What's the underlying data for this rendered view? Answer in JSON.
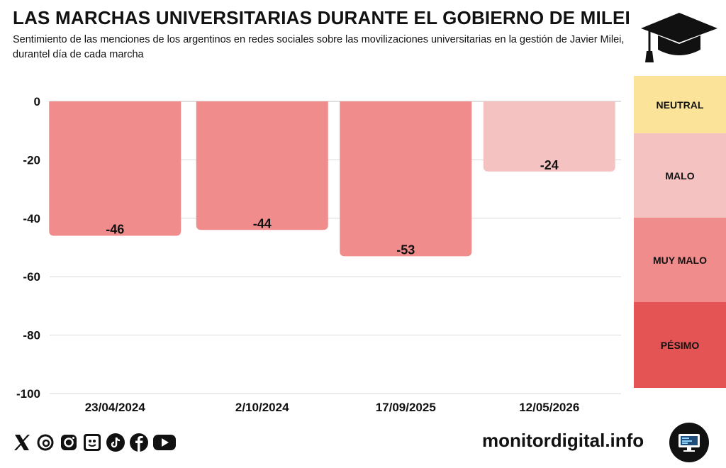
{
  "header": {
    "title": "LAS MARCHAS UNIVERSITARIAS DURANTE EL GOBIERNO DE MILEI",
    "subtitle": "Sentimiento de las menciones de los argentinos en redes sociales sobre las movilizaciones universitarias en la gestión de Javier Milei, durantel día de cada marcha"
  },
  "chart_data": {
    "type": "bar",
    "categories": [
      "23/04/2024",
      "2/10/2024",
      "17/09/2025",
      "12/05/2026"
    ],
    "values": [
      -46,
      -44,
      -53,
      -24
    ],
    "value_labels": [
      "-46",
      "-44",
      "-53",
      "-24"
    ],
    "bar_colors": [
      "#f08c8c",
      "#f08c8c",
      "#f08c8c",
      "#f5c2c2"
    ],
    "ylim": [
      -100,
      0
    ],
    "yticks": [
      0,
      -20,
      -40,
      -60,
      -80,
      -100
    ],
    "ytick_labels": [
      "0",
      "-20",
      "-40",
      "-60",
      "-80",
      "-100"
    ],
    "grid": true,
    "legend_scale": [
      {
        "label": "NEUTRAL",
        "color": "#fbe49a"
      },
      {
        "label": "MALO",
        "color": "#f5c2c2"
      },
      {
        "label": "MUY MALO",
        "color": "#f08c8c"
      },
      {
        "label": "PÉSIMO",
        "color": "#e55454"
      }
    ]
  },
  "footer": {
    "site": "monitordigital.info",
    "social_icons": [
      "x-icon",
      "threads-icon",
      "instagram-icon",
      "substack-icon",
      "tiktok-icon",
      "facebook-icon",
      "youtube-icon"
    ]
  },
  "colors": {
    "text": "#111111",
    "grid": "#d9d9d9"
  }
}
